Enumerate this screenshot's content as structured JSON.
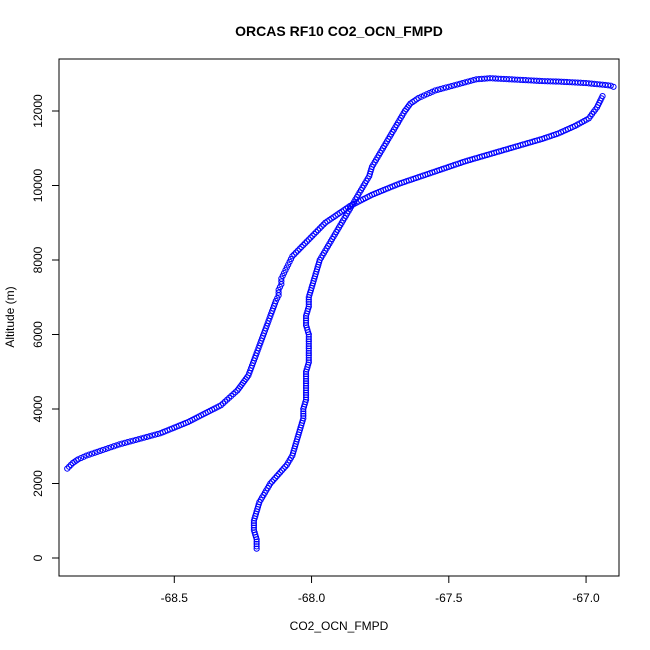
{
  "chart_data": {
    "type": "scatter",
    "title": "ORCAS RF10 CO2_OCN_FMPD",
    "xlabel": "CO2_OCN_FMPD",
    "ylabel": "Altitude (m)",
    "xlim": [
      -68.92,
      -66.88
    ],
    "ylim": [
      0,
      13000
    ],
    "xticks": [
      -68.5,
      -68.0,
      -67.5,
      -67.0
    ],
    "xtick_labels": [
      "-68.5",
      "-68.0",
      "-67.5",
      "-67.0"
    ],
    "yticks": [
      0,
      2000,
      4000,
      6000,
      8000,
      10000,
      12000
    ],
    "ytick_labels": [
      "0",
      "2000",
      "4000",
      "6000",
      "8000",
      "10000",
      "12000"
    ],
    "grid": false,
    "legend": "none",
    "marker": "open-circle",
    "color": "#0000ff",
    "series": [
      {
        "x": [
          -68.89,
          -68.87,
          -68.85,
          -68.82,
          -68.78,
          -68.74,
          -68.7,
          -68.65,
          -68.6,
          -68.55,
          -68.5,
          -68.45,
          -68.41,
          -68.37,
          -68.33,
          -68.3,
          -68.27,
          -68.25,
          -68.23,
          -68.22,
          -68.21,
          -68.2,
          -68.19,
          -68.18,
          -68.17,
          -68.16,
          -68.15,
          -68.14,
          -68.13,
          -68.12,
          -68.12,
          -68.11,
          -68.11,
          -68.1,
          -68.09,
          -68.08,
          -68.07,
          -68.05,
          -68.03,
          -68.01,
          -67.99,
          -67.97,
          -67.95,
          -67.92,
          -67.89,
          -67.86,
          -67.82,
          -67.78,
          -67.73,
          -67.68,
          -67.62,
          -67.56,
          -67.5,
          -67.44,
          -67.37,
          -67.3,
          -67.23,
          -67.16,
          -67.1,
          -67.04,
          -66.99,
          -66.96,
          -66.94
        ],
        "y": [
          2400,
          2550,
          2650,
          2750,
          2850,
          2950,
          3050,
          3150,
          3250,
          3350,
          3500,
          3650,
          3800,
          3950,
          4100,
          4300,
          4500,
          4700,
          4900,
          5100,
          5300,
          5500,
          5700,
          5900,
          6100,
          6300,
          6500,
          6700,
          6900,
          7050,
          7200,
          7350,
          7500,
          7650,
          7800,
          7950,
          8100,
          8250,
          8400,
          8550,
          8700,
          8850,
          9000,
          9150,
          9300,
          9450,
          9600,
          9750,
          9900,
          10050,
          10200,
          10350,
          10500,
          10650,
          10800,
          10950,
          11100,
          11250,
          11400,
          11600,
          11800,
          12100,
          12400
        ]
      },
      {
        "x": [
          -68.2,
          -68.2,
          -68.21,
          -68.21,
          -68.2,
          -68.19,
          -68.17,
          -68.15,
          -68.12,
          -68.09,
          -68.07,
          -68.06,
          -68.05,
          -68.04,
          -68.03,
          -68.03,
          -68.02,
          -68.02,
          -68.02,
          -68.02,
          -68.01,
          -68.01,
          -68.01,
          -68.01,
          -68.02,
          -68.02,
          -68.01,
          -68.01,
          -68.0,
          -67.99,
          -67.98,
          -67.97,
          -67.95,
          -67.93,
          -67.91,
          -67.89,
          -67.87,
          -67.85,
          -67.83,
          -67.81,
          -67.79,
          -67.78,
          -67.76,
          -67.74,
          -67.72,
          -67.7,
          -67.68,
          -67.66,
          -67.64,
          -67.61,
          -67.58,
          -67.55,
          -67.5,
          -67.45,
          -67.4,
          -67.35,
          -67.3,
          -67.25,
          -67.2,
          -67.15,
          -67.1,
          -67.05,
          -67.0,
          -66.96,
          -66.93,
          -66.91,
          -66.9
        ],
        "y": [
          250,
          500,
          750,
          1000,
          1250,
          1500,
          1750,
          2000,
          2250,
          2500,
          2750,
          3000,
          3250,
          3500,
          3750,
          4000,
          4250,
          4500,
          4750,
          5000,
          5250,
          5500,
          5750,
          6000,
          6250,
          6500,
          6750,
          7000,
          7250,
          7500,
          7750,
          8000,
          8250,
          8500,
          8750,
          9000,
          9250,
          9500,
          9750,
          10000,
          10250,
          10500,
          10750,
          11000,
          11250,
          11500,
          11750,
          12000,
          12200,
          12350,
          12450,
          12550,
          12650,
          12750,
          12850,
          12880,
          12860,
          12840,
          12820,
          12800,
          12790,
          12770,
          12750,
          12720,
          12700,
          12680,
          12650
        ]
      }
    ]
  }
}
